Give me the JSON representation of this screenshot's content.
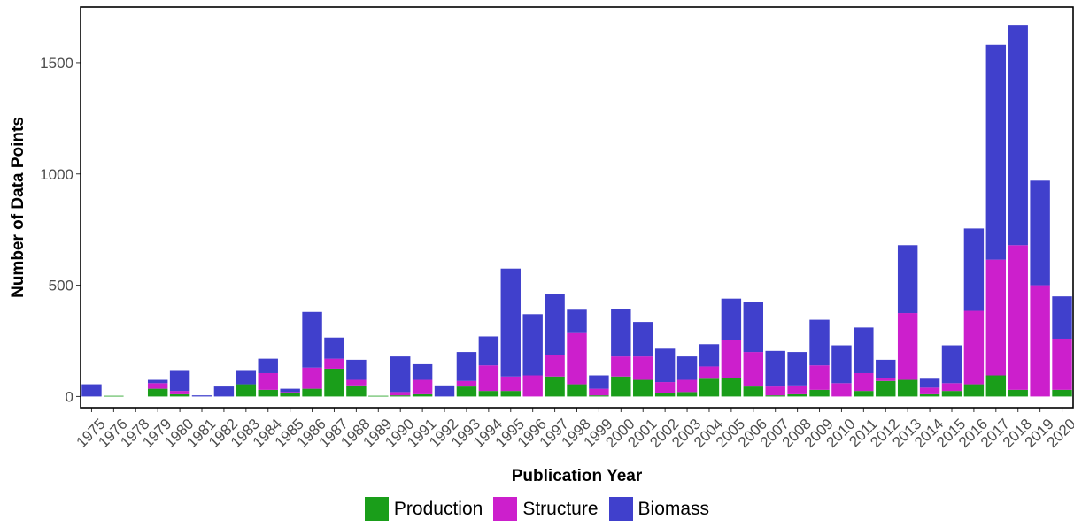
{
  "chart_data": {
    "type": "bar",
    "stacked": true,
    "xlabel": "Publication Year",
    "ylabel": "Number of Data Points",
    "ylim": [
      -50,
      1750
    ],
    "yticks": [
      0,
      500,
      1000,
      1500
    ],
    "grid": false,
    "legend_position": "bottom",
    "categories": [
      "1975",
      "1976",
      "1978",
      "1979",
      "1980",
      "1981",
      "1982",
      "1983",
      "1984",
      "1985",
      "1986",
      "1987",
      "1988",
      "1989",
      "1990",
      "1991",
      "1992",
      "1993",
      "1994",
      "1995",
      "1996",
      "1997",
      "1998",
      "1999",
      "2000",
      "2001",
      "2002",
      "2003",
      "2004",
      "2005",
      "2006",
      "2007",
      "2008",
      "2009",
      "2010",
      "2011",
      "2012",
      "2013",
      "2014",
      "2015",
      "2016",
      "2017",
      "2018",
      "2019",
      "2020"
    ],
    "series": [
      {
        "name": "Production",
        "color": "#1a9e1a",
        "values": [
          0,
          3,
          0,
          35,
          10,
          0,
          0,
          55,
          30,
          15,
          35,
          125,
          50,
          3,
          5,
          10,
          0,
          45,
          25,
          25,
          0,
          90,
          55,
          5,
          90,
          75,
          15,
          20,
          80,
          85,
          45,
          5,
          10,
          30,
          0,
          25,
          70,
          75,
          10,
          25,
          55,
          95,
          30,
          0,
          30
        ]
      },
      {
        "name": "Structure",
        "color": "#cc1fcc",
        "values": [
          0,
          0,
          0,
          25,
          15,
          0,
          0,
          0,
          75,
          5,
          95,
          45,
          25,
          0,
          15,
          65,
          0,
          25,
          115,
          65,
          95,
          95,
          230,
          30,
          90,
          105,
          50,
          55,
          55,
          170,
          155,
          40,
          40,
          110,
          60,
          80,
          15,
          300,
          30,
          35,
          330,
          520,
          650,
          500,
          230
        ]
      },
      {
        "name": "Biomass",
        "color": "#4040cc",
        "values": [
          55,
          0,
          0,
          15,
          90,
          5,
          45,
          60,
          65,
          15,
          250,
          95,
          90,
          0,
          160,
          70,
          50,
          130,
          130,
          485,
          275,
          275,
          105,
          60,
          215,
          155,
          150,
          105,
          100,
          185,
          225,
          160,
          150,
          205,
          170,
          205,
          80,
          305,
          40,
          170,
          370,
          965,
          990,
          470,
          190
        ]
      }
    ]
  }
}
